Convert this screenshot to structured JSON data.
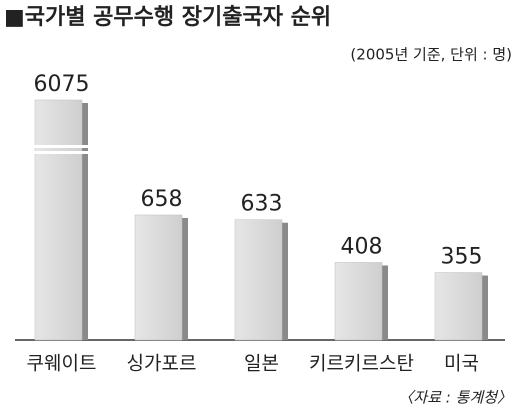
{
  "chart_data": {
    "type": "bar",
    "title": "■국가별 공무수행 장기출국자 순위",
    "subtitle": "(2005년 기준, 단위 : 명)",
    "source": "〈자료 : 통계청〉",
    "categories": [
      "쿠웨이트",
      "싱가포르",
      "일본",
      "키르키르스탄",
      "미국"
    ],
    "values": [
      6075,
      658,
      633,
      408,
      355
    ],
    "color": "#d6d6d6"
  }
}
